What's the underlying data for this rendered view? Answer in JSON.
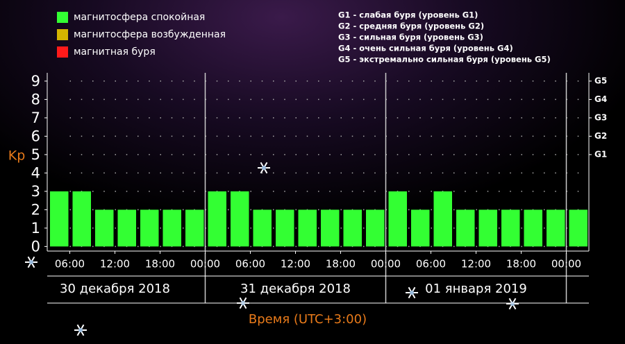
{
  "chart_data": {
    "type": "bar",
    "y_label": "Kp",
    "x_label": "Время (UTC+3:00)",
    "categories": [
      null,
      null,
      null,
      null,
      null,
      null,
      null,
      null,
      null,
      null,
      null,
      null,
      null,
      null,
      null,
      null,
      null,
      null,
      null,
      null,
      null,
      null,
      null,
      null
    ],
    "values": [
      3,
      3,
      2,
      2,
      2,
      2,
      2,
      3,
      3,
      2,
      2,
      2,
      2,
      2,
      2,
      3,
      2,
      3,
      2,
      2,
      2,
      2,
      2,
      2
    ],
    "color": "#33ff33",
    "ylim": [
      -0.25,
      9.45
    ],
    "yticks": [
      0,
      1,
      2,
      3,
      4,
      5,
      6,
      7,
      8,
      9
    ],
    "y2lim": [
      -0.25,
      9.45
    ],
    "y2ticks": [
      {
        "value": 5,
        "label": "G1"
      },
      {
        "value": 6,
        "label": "G2"
      },
      {
        "value": 7,
        "label": "G3"
      },
      {
        "value": 8,
        "label": "G4"
      },
      {
        "value": 9,
        "label": "G5"
      }
    ],
    "xtick_labels": [
      "06:00",
      "12:00",
      "18:00",
      "00:00",
      "06:00",
      "12:00",
      "18:00",
      "00:00",
      "06:00",
      "12:00",
      "18:00",
      "00:00"
    ],
    "days": [
      "30 декабря 2018",
      "31 декабря 2018",
      "01 января 2019"
    ],
    "grid": true,
    "legend": [
      {
        "label": "магнитосфера спокойная",
        "color": "#33ff33"
      },
      {
        "label": "магнитосфера возбужденная",
        "color": "#d4b400"
      },
      {
        "label": "магнитная буря",
        "color": "#ff1a1a"
      }
    ],
    "notes": [
      "G1 - слабая буря (уровень G1)",
      "G2 - средняя буря (уровень G2)",
      "G3 - сильная буря (уровень G3)",
      "G4 - очень сильная буря (уровень G4)",
      "G5 - экстремально сильная буря (уровень G5)"
    ]
  }
}
